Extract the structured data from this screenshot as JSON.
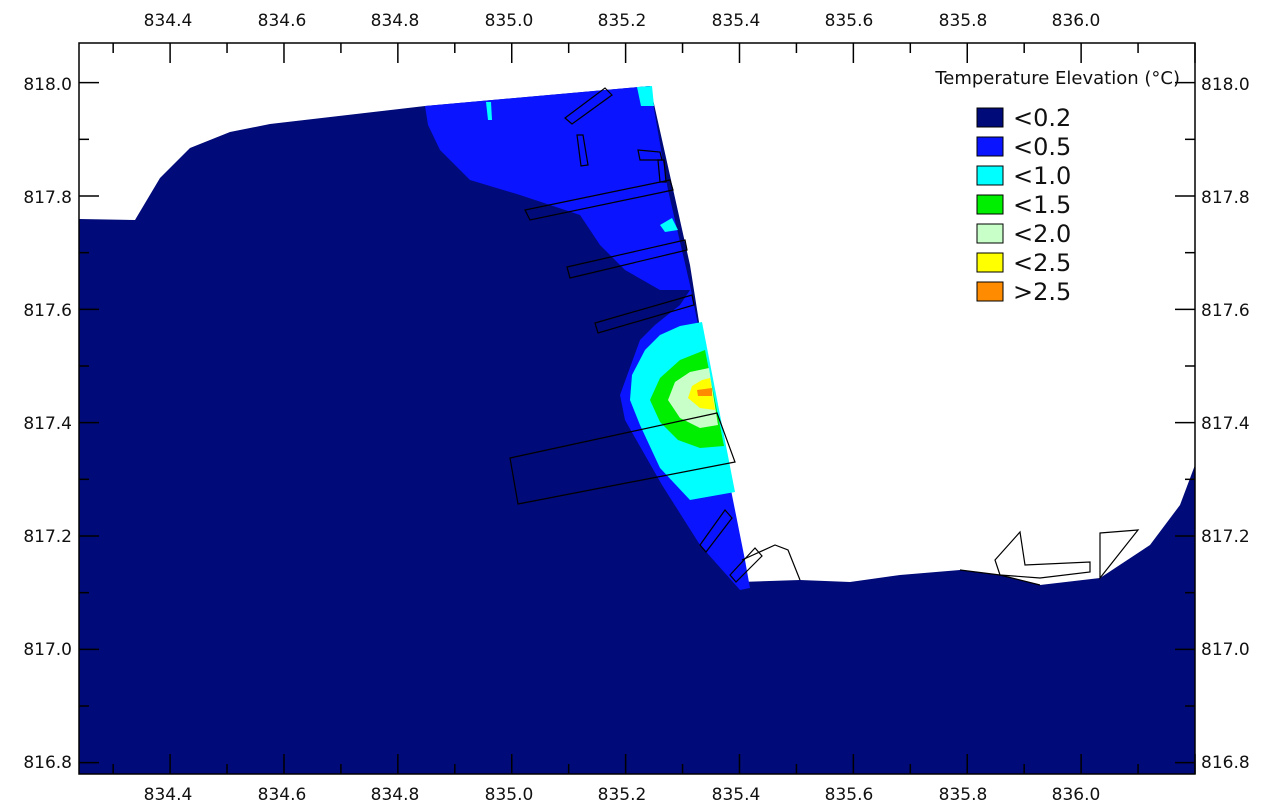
{
  "title": "Temperature Elevation (°C)",
  "x_ticks": [
    "834.4",
    "834.6",
    "834.8",
    "835.0",
    "835.2",
    "835.4",
    "835.6",
    "835.8",
    "836.0"
  ],
  "y_ticks": [
    "818.0",
    "817.8",
    "817.6",
    "817.4",
    "817.2",
    "817.0",
    "816.8"
  ],
  "legend": [
    {
      "label": "<0.2",
      "color": "#000a78"
    },
    {
      "label": "<0.5",
      "color": "#0a14ff"
    },
    {
      "label": "<1.0",
      "color": "#00ffff"
    },
    {
      "label": "<1.5",
      "color": "#00ee00"
    },
    {
      "label": "<2.0",
      "color": "#c8ffc8"
    },
    {
      "label": "<2.5",
      "color": "#ffff00"
    },
    {
      "label": ">2.5",
      "color": "#ff8c00"
    }
  ],
  "chart_data": {
    "type": "heatmap",
    "title": "Temperature Elevation (°C)",
    "xlim": [
      834.24,
      836.2
    ],
    "ylim": [
      816.78,
      818.07
    ],
    "x_ticks": [
      834.4,
      834.6,
      834.8,
      835.0,
      835.2,
      835.4,
      835.6,
      835.8,
      836.0
    ],
    "y_ticks": [
      818.0,
      817.8,
      817.6,
      817.4,
      817.2,
      817.0,
      816.8
    ],
    "classes": [
      "<0.2",
      "<0.5",
      "<1.0",
      "<1.5",
      "<2.0",
      "<2.5",
      ">2.5"
    ],
    "peak_location": [
      835.35,
      817.45
    ],
    "legend_position": "top-right"
  }
}
